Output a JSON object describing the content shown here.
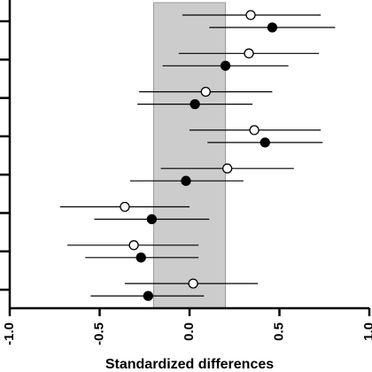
{
  "chart_data": {
    "type": "forest",
    "xlabel": "Standardized differences",
    "xlim": [
      -1.0,
      1.0
    ],
    "xticks": [
      {
        "value": -1.0,
        "label": "-1.0"
      },
      {
        "value": -0.5,
        "label": "-0.5"
      },
      {
        "value": 0.0,
        "label": "0.0"
      },
      {
        "value": 0.5,
        "label": "0.5"
      },
      {
        "value": 1.0,
        "label": "1.0"
      }
    ],
    "reference_band": [
      -0.2,
      0.2
    ],
    "grid": false,
    "legend": "none",
    "rows": 8,
    "series": [
      {
        "marker": "open-circle",
        "points": [
          {
            "row": 1,
            "value": 0.34,
            "lower": -0.04,
            "upper": 0.73
          },
          {
            "row": 2,
            "value": 0.33,
            "lower": -0.06,
            "upper": 0.72
          },
          {
            "row": 3,
            "value": 0.09,
            "lower": -0.28,
            "upper": 0.46
          },
          {
            "row": 4,
            "value": 0.36,
            "lower": 0.0,
            "upper": 0.73
          },
          {
            "row": 5,
            "value": 0.21,
            "lower": -0.16,
            "upper": 0.58
          },
          {
            "row": 6,
            "value": -0.36,
            "lower": -0.72,
            "upper": 0.0
          },
          {
            "row": 7,
            "value": -0.31,
            "lower": -0.68,
            "upper": 0.05
          },
          {
            "row": 8,
            "value": 0.02,
            "lower": -0.36,
            "upper": 0.38
          }
        ]
      },
      {
        "marker": "filled-circle",
        "points": [
          {
            "row": 1,
            "value": 0.46,
            "lower": 0.11,
            "upper": 0.81
          },
          {
            "row": 2,
            "value": 0.2,
            "lower": -0.15,
            "upper": 0.55
          },
          {
            "row": 3,
            "value": 0.03,
            "lower": -0.29,
            "upper": 0.35
          },
          {
            "row": 4,
            "value": 0.42,
            "lower": 0.1,
            "upper": 0.74
          },
          {
            "row": 5,
            "value": -0.02,
            "lower": -0.33,
            "upper": 0.3
          },
          {
            "row": 6,
            "value": -0.21,
            "lower": -0.53,
            "upper": 0.11
          },
          {
            "row": 7,
            "value": -0.27,
            "lower": -0.58,
            "upper": 0.05
          },
          {
            "row": 8,
            "value": -0.23,
            "lower": -0.55,
            "upper": 0.08
          }
        ]
      }
    ]
  },
  "colors": {
    "band": "#cccccc",
    "band_edge": "#999999",
    "axis": "#000000",
    "ci_line": "#000000",
    "open_marker_fill": "#ffffff",
    "filled_marker_fill": "#000000"
  }
}
